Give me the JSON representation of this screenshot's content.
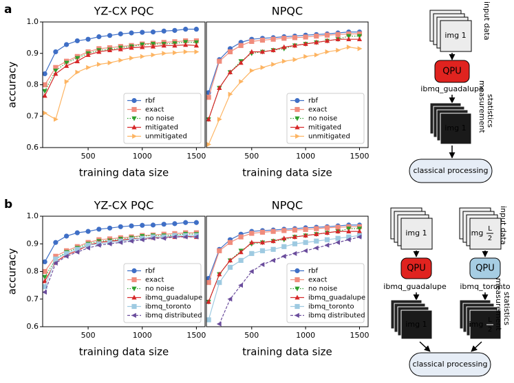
{
  "panel_labels": [
    "a",
    "b"
  ],
  "chart_data": [
    {
      "type": "line",
      "title": "YZ-CX PQC",
      "xlabel": "training data size",
      "ylabel": "accuracy",
      "x": [
        100,
        200,
        300,
        400,
        500,
        600,
        700,
        800,
        900,
        1000,
        1100,
        1200,
        1300,
        1400,
        1500
      ],
      "xlim": [
        80,
        1580
      ],
      "xticks": [
        500,
        1000,
        1500
      ],
      "ylim": [
        0.6,
        1.0
      ],
      "yticks": [
        0.6,
        0.7,
        0.8,
        0.9,
        {
          "value": 1.0,
          "label": "1.0"
        }
      ],
      "legend": "lower right",
      "series": [
        {
          "name": "rbf",
          "color": "#3f6fc6",
          "marker": "circle",
          "linestyle": "solid",
          "values": [
            0.835,
            0.905,
            0.928,
            0.94,
            0.945,
            0.953,
            0.957,
            0.962,
            0.965,
            0.967,
            0.968,
            0.971,
            0.973,
            0.977,
            0.977
          ]
        },
        {
          "name": "exact",
          "color": "#f08c7c",
          "marker": "square",
          "linestyle": "solid",
          "values": [
            0.8,
            0.855,
            0.875,
            0.89,
            0.905,
            0.915,
            0.918,
            0.922,
            0.925,
            0.93,
            0.932,
            0.935,
            0.937,
            0.94,
            0.94
          ]
        },
        {
          "name": "no noise",
          "color": "#2ca02c",
          "marker": "triangle-down",
          "linestyle": "dotted",
          "values": [
            0.78,
            0.845,
            0.87,
            0.885,
            0.9,
            0.91,
            0.912,
            0.918,
            0.922,
            0.928,
            0.93,
            0.93,
            0.932,
            0.936,
            0.935
          ]
        },
        {
          "name": "mitigated",
          "color": "#d62728",
          "marker": "triangle-up",
          "linestyle": "solid",
          "values": [
            0.765,
            0.835,
            0.86,
            0.875,
            0.895,
            0.905,
            0.91,
            0.913,
            0.918,
            0.92,
            0.922,
            0.925,
            0.925,
            0.927,
            0.925
          ]
        },
        {
          "name": "unmitigated",
          "color": "#fdb462",
          "marker": "triangle-right",
          "linestyle": "solid",
          "values": [
            0.71,
            0.69,
            0.81,
            0.84,
            0.855,
            0.865,
            0.87,
            0.878,
            0.885,
            0.89,
            0.895,
            0.9,
            0.902,
            0.905,
            0.905
          ]
        }
      ]
    },
    {
      "type": "line",
      "title": "NPQC",
      "xlabel": "training data size",
      "x": [
        100,
        200,
        300,
        400,
        500,
        600,
        700,
        800,
        900,
        1000,
        1100,
        1200,
        1300,
        1400,
        1500
      ],
      "xlim": [
        80,
        1580
      ],
      "xticks": [
        500,
        1000,
        1500
      ],
      "ylim": [
        0.6,
        1.0
      ],
      "legend": "lower right",
      "series": [
        {
          "name": "rbf",
          "color": "#3f6fc6",
          "marker": "circle",
          "linestyle": "solid",
          "values": [
            0.775,
            0.88,
            0.915,
            0.935,
            0.945,
            0.948,
            0.95,
            0.953,
            0.955,
            0.958,
            0.96,
            0.962,
            0.965,
            0.968,
            0.968
          ]
        },
        {
          "name": "exact",
          "color": "#f08c7c",
          "marker": "square",
          "linestyle": "solid",
          "values": [
            0.76,
            0.875,
            0.905,
            0.925,
            0.938,
            0.942,
            0.945,
            0.948,
            0.95,
            0.952,
            0.955,
            0.958,
            0.96,
            0.962,
            0.962
          ]
        },
        {
          "name": "no noise",
          "color": "#2ca02c",
          "marker": "triangle-down",
          "linestyle": "dotted",
          "values": [
            0.69,
            0.79,
            0.84,
            0.875,
            0.9,
            0.905,
            0.91,
            0.915,
            0.925,
            0.93,
            0.935,
            0.94,
            0.945,
            0.955,
            0.955
          ]
        },
        {
          "name": "mitigated",
          "color": "#d62728",
          "marker": "triangle-up",
          "linestyle": "solid",
          "values": [
            0.69,
            0.79,
            0.84,
            0.87,
            0.905,
            0.905,
            0.91,
            0.92,
            0.925,
            0.93,
            0.935,
            0.94,
            0.945,
            0.945,
            0.945
          ]
        },
        {
          "name": "unmitigated",
          "color": "#fdb462",
          "marker": "triangle-right",
          "linestyle": "solid",
          "values": [
            0.61,
            0.69,
            0.77,
            0.81,
            0.845,
            0.855,
            0.865,
            0.875,
            0.88,
            0.89,
            0.895,
            0.905,
            0.91,
            0.92,
            0.915
          ]
        }
      ]
    },
    {
      "type": "line",
      "title": "YZ-CX PQC",
      "xlabel": "training data size",
      "ylabel": "accuracy",
      "x": [
        100,
        200,
        300,
        400,
        500,
        600,
        700,
        800,
        900,
        1000,
        1100,
        1200,
        1300,
        1400,
        1500
      ],
      "xlim": [
        80,
        1580
      ],
      "xticks": [
        500,
        1000,
        1500
      ],
      "ylim": [
        0.6,
        1.0
      ],
      "yticks": [
        0.6,
        0.7,
        0.8,
        0.9,
        {
          "value": 1.0,
          "label": "1.0"
        }
      ],
      "legend": "lower right",
      "series": [
        {
          "name": "rbf",
          "color": "#3f6fc6",
          "marker": "circle",
          "linestyle": "solid",
          "values": [
            0.835,
            0.905,
            0.928,
            0.94,
            0.945,
            0.953,
            0.957,
            0.962,
            0.965,
            0.967,
            0.968,
            0.971,
            0.973,
            0.977,
            0.977
          ]
        },
        {
          "name": "exact",
          "color": "#f08c7c",
          "marker": "square",
          "linestyle": "solid",
          "values": [
            0.8,
            0.855,
            0.875,
            0.89,
            0.905,
            0.915,
            0.918,
            0.922,
            0.925,
            0.93,
            0.932,
            0.935,
            0.937,
            0.94,
            0.94
          ]
        },
        {
          "name": "no noise",
          "color": "#2ca02c",
          "marker": "triangle-down",
          "linestyle": "dotted",
          "values": [
            0.78,
            0.845,
            0.87,
            0.885,
            0.9,
            0.91,
            0.912,
            0.918,
            0.922,
            0.928,
            0.93,
            0.93,
            0.932,
            0.936,
            0.935
          ]
        },
        {
          "name": "ibmq_guadalupe",
          "color": "#d62728",
          "marker": "triangle-up",
          "linestyle": "solid",
          "values": [
            0.765,
            0.835,
            0.86,
            0.875,
            0.895,
            0.905,
            0.91,
            0.913,
            0.918,
            0.92,
            0.922,
            0.925,
            0.925,
            0.927,
            0.925
          ]
        },
        {
          "name": "ibmq_toronto",
          "color": "#9ecae1",
          "marker": "square",
          "linestyle": "solid",
          "values": [
            0.745,
            0.845,
            0.865,
            0.88,
            0.895,
            0.9,
            0.905,
            0.91,
            0.915,
            0.92,
            0.925,
            0.925,
            0.93,
            0.93,
            0.93
          ]
        },
        {
          "name": "ibmq distributed",
          "color": "#6a4c9c",
          "marker": "triangle-left",
          "linestyle": "dashed",
          "values": [
            0.725,
            0.83,
            0.855,
            0.87,
            0.885,
            0.895,
            0.9,
            0.905,
            0.91,
            0.915,
            0.92,
            0.92,
            0.925,
            0.925,
            0.925
          ]
        }
      ]
    },
    {
      "type": "line",
      "title": "NPQC",
      "xlabel": "training data size",
      "x": [
        100,
        200,
        300,
        400,
        500,
        600,
        700,
        800,
        900,
        1000,
        1100,
        1200,
        1300,
        1400,
        1500
      ],
      "xlim": [
        80,
        1580
      ],
      "xticks": [
        500,
        1000,
        1500
      ],
      "ylim": [
        0.6,
        1.0
      ],
      "legend": "lower right",
      "series": [
        {
          "name": "rbf",
          "color": "#3f6fc6",
          "marker": "circle",
          "linestyle": "solid",
          "values": [
            0.775,
            0.88,
            0.915,
            0.935,
            0.945,
            0.948,
            0.95,
            0.953,
            0.955,
            0.958,
            0.96,
            0.962,
            0.965,
            0.968,
            0.968
          ]
        },
        {
          "name": "exact",
          "color": "#f08c7c",
          "marker": "square",
          "linestyle": "solid",
          "values": [
            0.76,
            0.875,
            0.905,
            0.925,
            0.938,
            0.942,
            0.945,
            0.948,
            0.95,
            0.952,
            0.955,
            0.958,
            0.96,
            0.962,
            0.962
          ]
        },
        {
          "name": "no noise",
          "color": "#2ca02c",
          "marker": "triangle-down",
          "linestyle": "dotted",
          "values": [
            0.69,
            0.79,
            0.84,
            0.875,
            0.9,
            0.905,
            0.91,
            0.915,
            0.925,
            0.93,
            0.935,
            0.94,
            0.945,
            0.955,
            0.955
          ]
        },
        {
          "name": "ibmq_guadalupe",
          "color": "#d62728",
          "marker": "triangle-up",
          "linestyle": "solid",
          "values": [
            0.69,
            0.79,
            0.84,
            0.87,
            0.905,
            0.905,
            0.91,
            0.92,
            0.925,
            0.93,
            0.935,
            0.94,
            0.945,
            0.945,
            0.945
          ]
        },
        {
          "name": "ibmq_toronto",
          "color": "#9ecae1",
          "marker": "square",
          "linestyle": "solid",
          "values": [
            0.625,
            0.76,
            0.815,
            0.84,
            0.865,
            0.875,
            0.88,
            0.89,
            0.9,
            0.905,
            0.91,
            0.915,
            0.92,
            0.925,
            0.93
          ]
        },
        {
          "name": "ibmq distributed",
          "color": "#6a4c9c",
          "marker": "triangle-left",
          "linestyle": "dashed",
          "values": [
            null,
            0.61,
            0.7,
            0.75,
            0.8,
            0.825,
            0.84,
            0.855,
            0.865,
            0.875,
            0.885,
            0.895,
            0.905,
            0.915,
            0.925
          ]
        }
      ]
    }
  ],
  "diagrams": {
    "a": {
      "input_image": "img 1",
      "input_label": "input data",
      "qpu": "QPU",
      "device": "ibmq_guadalupe",
      "output_image": "img 1",
      "output_label": [
        "measurement",
        "statistics"
      ],
      "processing": "classical processing"
    },
    "b": {
      "input_image_1": "img 1",
      "input_image_2": {
        "prefix": "img",
        "numerator": "L",
        "denominator": "2"
      },
      "input_label": "input data",
      "qpu_1": "QPU",
      "qpu_2": "QPU",
      "device_1": "ibmq_guadalupe",
      "device_2": "ibmq_toronto",
      "output_image_1": "img 1",
      "output_image_2": {
        "prefix": "img",
        "numerator": "L",
        "denominator": "2"
      },
      "output_label": [
        "measurement",
        "statistics"
      ],
      "processing": "classical processing"
    }
  }
}
